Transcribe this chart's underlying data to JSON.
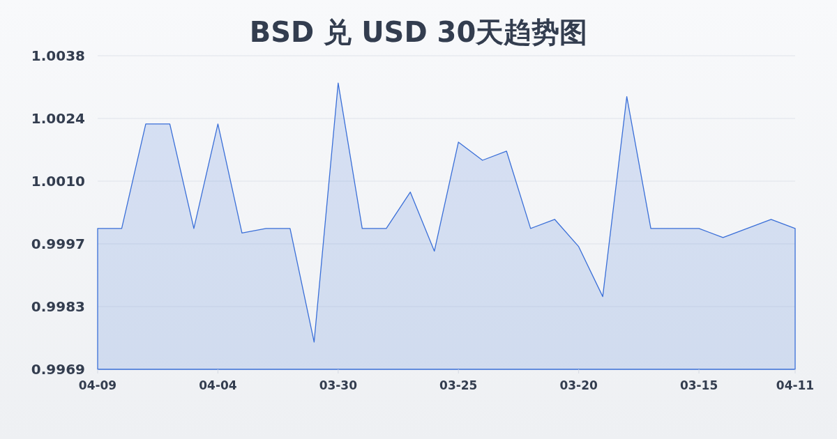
{
  "chart_data": {
    "type": "area",
    "title": "BSD 兑 USD 30天趋势图",
    "categories": [
      "04-09",
      null,
      null,
      null,
      null,
      "04-04",
      null,
      null,
      null,
      null,
      "03-30",
      null,
      null,
      null,
      null,
      "03-25",
      null,
      null,
      null,
      null,
      "03-20",
      null,
      null,
      null,
      null,
      "03-15",
      null,
      null,
      null,
      "04-11"
    ],
    "series": [
      {
        "color": "#3a6fd8",
        "values": [
          1.0,
          1.0,
          1.0023,
          1.0023,
          1.0,
          1.0023,
          0.9999,
          1.0,
          1.0,
          0.9975,
          1.0032,
          1.0,
          1.0,
          1.0008,
          0.9995,
          1.0019,
          1.0015,
          1.0017,
          1.0,
          1.0002,
          0.9996,
          0.9985,
          1.0029,
          1.0,
          1.0,
          1.0,
          0.9998,
          1.0,
          1.0002,
          1.0
        ]
      }
    ],
    "ylim": [
      0.9969,
      1.0038
    ],
    "yticks": [
      {
        "value": 0.9969,
        "label": "0.9969"
      },
      {
        "value": 0.99828,
        "label": "0.9983"
      },
      {
        "value": 0.99966,
        "label": "0.9997"
      },
      {
        "value": 1.00104,
        "label": "1.0010"
      },
      {
        "value": 1.00242,
        "label": "1.0024"
      },
      {
        "value": 1.0038,
        "label": "1.0038"
      }
    ],
    "grid": "y"
  }
}
